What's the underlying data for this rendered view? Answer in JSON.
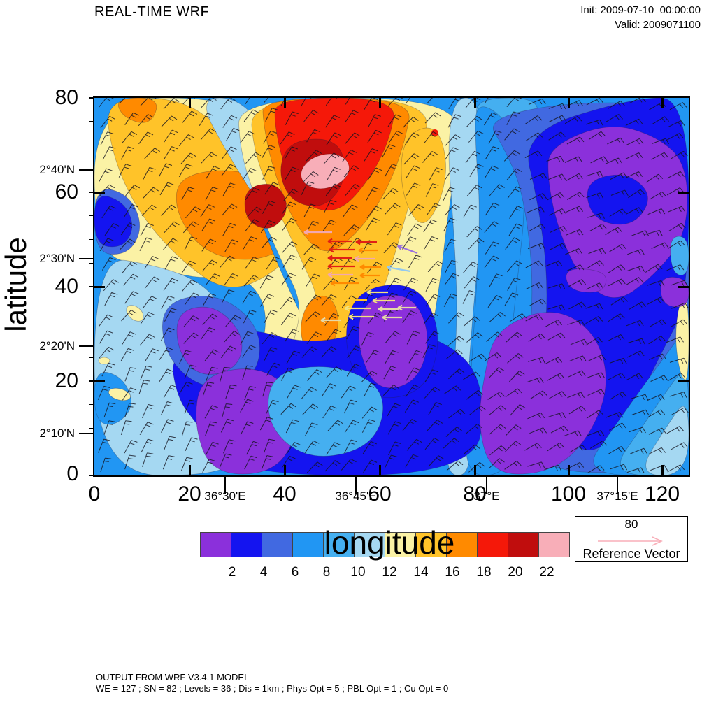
{
  "header": {
    "title": "REAL-TIME WRF",
    "init": "Init: 2009-07-10_00:00:00",
    "valid": "Valid: 2009071100"
  },
  "axes": {
    "x_title": "longitude",
    "y_title": "latitude",
    "x_grid_labels": [
      "0",
      "20",
      "40",
      "60",
      "80",
      "100",
      "120"
    ],
    "y_grid_labels": [
      "80",
      "60",
      "40",
      "20",
      "0"
    ],
    "x_geo_labels": [
      "36°30'E",
      "36°45'E",
      "37°E",
      "37°15'E"
    ],
    "y_geo_labels": [
      "2°40'N",
      "2°30'N",
      "2°20'N",
      "2°10'N"
    ]
  },
  "colorbar": {
    "labels": [
      "2",
      "4",
      "6",
      "8",
      "10",
      "12",
      "14",
      "16",
      "18",
      "20",
      "22"
    ],
    "colors": [
      "#8B30DB",
      "#1414F0",
      "#4169E1",
      "#2196F3",
      "#45AFF0",
      "#A5D8F2",
      "#FBF2A5",
      "#FFC329",
      "#FF8A00",
      "#F51809",
      "#C00D0D",
      "#F8AEB8"
    ]
  },
  "reference_vector": {
    "value": "80",
    "label": "Reference Vector",
    "arrow_color": "#F8AEB8"
  },
  "footer": {
    "line1": "OUTPUT FROM WRF V3.4.1 MODEL",
    "line2": "WE = 127 ; SN = 82 ; Levels = 36 ; Dis = 1km ; Phys Opt = 5 ; PBL Opt = 1 ; Cu Opt = 0"
  },
  "overlay_vectors": {
    "colors": {
      "red": "#E02015",
      "orange": "#FF8A00",
      "gold": "#FFC329",
      "yellow": "#F2E27E",
      "khaki": "#E6D9A8",
      "pink": "#F2A8B0",
      "lavender": "#9A6FE0",
      "lightblue": "#93C9F0"
    },
    "barb_color": "#14141E"
  },
  "chart_data": {
    "type": "heatmap",
    "title": "REAL-TIME WRF",
    "xlabel": "longitude",
    "ylabel": "latitude",
    "x_grid_ticks": [
      0,
      20,
      40,
      60,
      80,
      100,
      120
    ],
    "y_grid_ticks": [
      0,
      20,
      40,
      60,
      80
    ],
    "x_geo_ticks": [
      "36°30'E",
      "36°45'E",
      "37°E",
      "37°15'E"
    ],
    "y_geo_ticks": [
      "2°10'N",
      "2°20'N",
      "2°30'N",
      "2°40'N"
    ],
    "colorbar_levels": [
      2,
      4,
      6,
      8,
      10,
      12,
      14,
      16,
      18,
      20,
      22
    ],
    "colorbar_colors": [
      "#8B30DB",
      "#1414F0",
      "#4169E1",
      "#2196F3",
      "#45AFF0",
      "#A5D8F2",
      "#FBF2A5",
      "#FFC329",
      "#FF8A00",
      "#F51809",
      "#C00D0D",
      "#F8AEB8"
    ],
    "field": "wind speed filled contours (values < 2 to > 22) with wind barbs everywhere and a cluster of colored wind vectors near 2°30'N, 36°50'E pointing west",
    "reference_vector_value": 80,
    "regions_summary": [
      "top-left: pale yellow/gold with orange core (speeds 12-18)",
      "top-center: large red maximum with dark-red blobs and pink core > 22 near gridpoint (45,62)",
      "diagonal light-blue band (8-12) from top x~25 down through center",
      "right third: large purple (<2) areas embedded in strong blue (2-4) and royal blue (4-6)",
      "bottom-left: light blue (10-12) with small yellow spots",
      "bottom-center: mixed blue/royal/purple patches with gold-orange blob near (45,30)",
      "bottom-right corner: banded royal-dodger-sky-pale blue with pale-yellow sliver at right edge"
    ],
    "footnotes": [
      "OUTPUT FROM WRF V3.4.1 MODEL",
      "WE = 127 ; SN = 82 ; Levels = 36 ; Dis = 1km ; Phys Opt = 5 ; PBL Opt = 1 ; Cu Opt = 0"
    ]
  }
}
